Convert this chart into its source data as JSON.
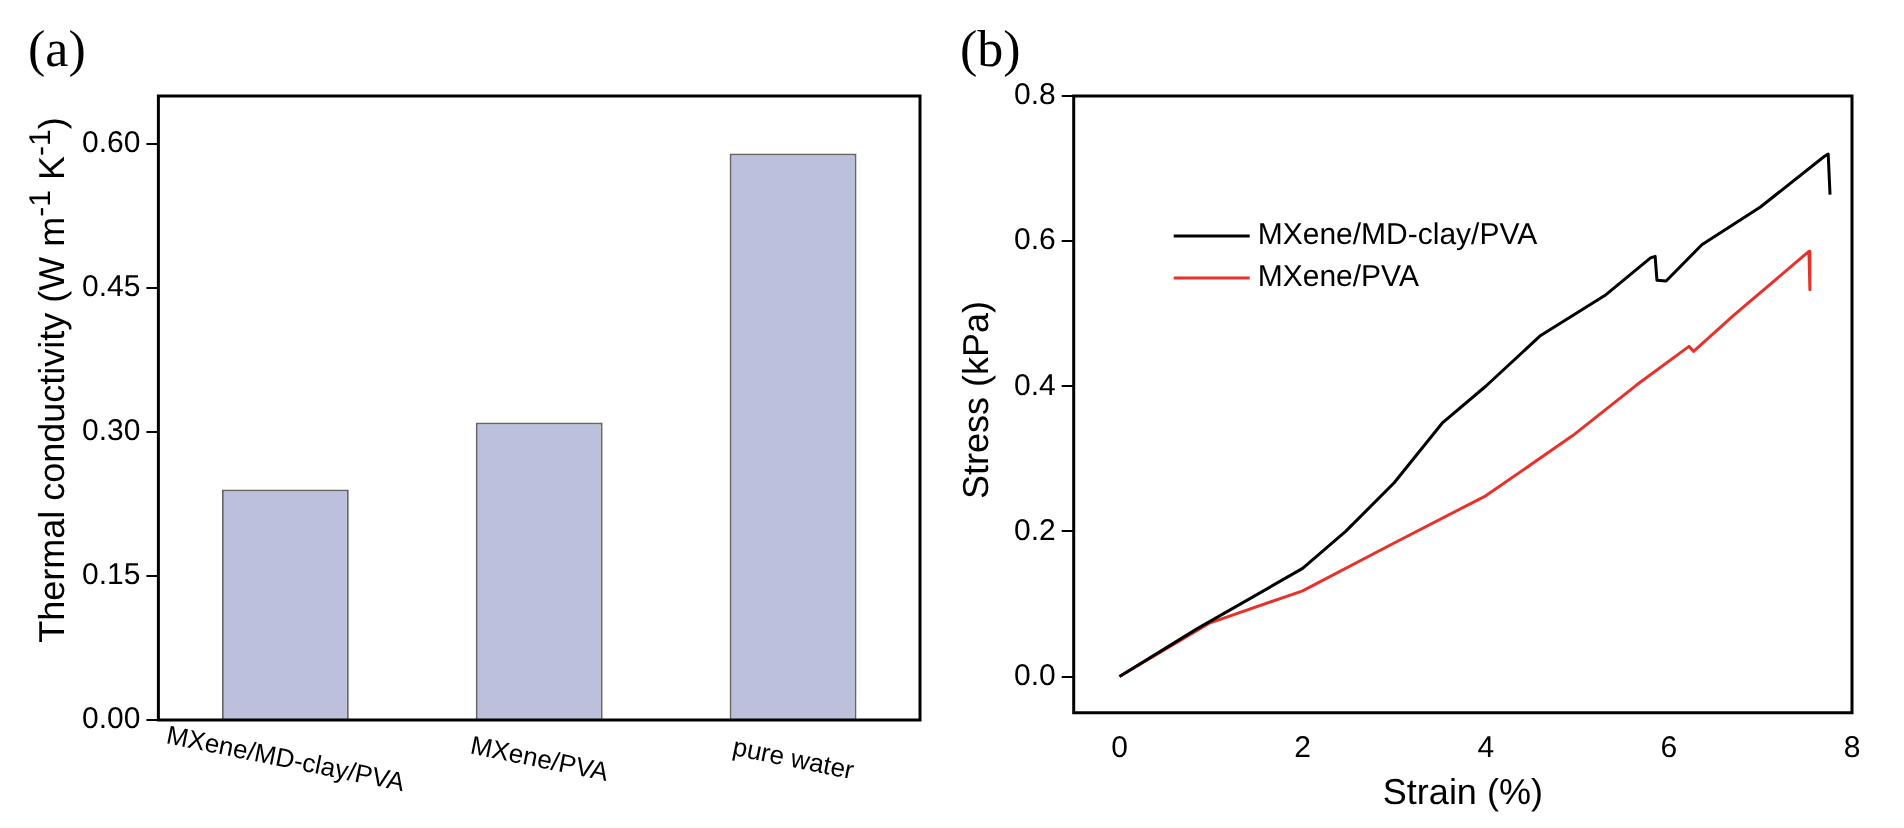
{
  "chart_data": [
    {
      "type": "bar",
      "title": "(a)",
      "ylabel": "Thermal conductivity (W m$^{-1}$ K$^{-1}$)",
      "categories": [
        "MXene/MD-clay/PVA",
        "MXene/PVA",
        "pure water"
      ],
      "values": [
        0.24,
        0.31,
        0.59
      ],
      "color": "#bcc0dc",
      "ylim": [
        0,
        0.65
      ],
      "yticks": [
        {
          "value": 0,
          "label": "0.00"
        },
        {
          "value": 0.15,
          "label": "0.15"
        },
        {
          "value": 0.3,
          "label": "0.30"
        },
        {
          "value": 0.45,
          "label": "0.45"
        },
        {
          "value": 0.6,
          "label": "0.60"
        }
      ],
      "legend": false
    },
    {
      "type": "line",
      "title": "(b)",
      "xlabel": "Strain (%)",
      "ylabel": "Stress (kPa)",
      "legend": "top left",
      "xlim": [
        -0.5,
        8
      ],
      "xticks": [
        0,
        2,
        4,
        6,
        8
      ],
      "ylim": [
        -0.05,
        0.8
      ],
      "yticks": [
        {
          "value": 0,
          "label": "0.0"
        },
        {
          "value": 0.2,
          "label": "0.2"
        },
        {
          "value": 0.4,
          "label": "0.4"
        },
        {
          "value": 0.6,
          "label": "0.6"
        },
        {
          "value": 0.8,
          "label": "0.8"
        }
      ],
      "series": [
        {
          "name": "MXene/MD-clay/PVA",
          "color": "#000000",
          "x": [
            0,
            0.85,
            2,
            2.47,
            3,
            3.53,
            4,
            4.6,
            5.3,
            5.8,
            5.85,
            5.87,
            5.97,
            6.36,
            7,
            7.7,
            7.74,
            7.76
          ],
          "values": [
            0,
            0.066,
            0.149,
            0.2,
            0.267,
            0.35,
            0.4,
            0.47,
            0.525,
            0.577,
            0.579,
            0.546,
            0.545,
            0.595,
            0.647,
            0.717,
            0.72,
            0.664
          ]
        },
        {
          "name": "MXene/PVA",
          "color": "#e8312a",
          "x": [
            0,
            0.99,
            2,
            3,
            4,
            4.95,
            5.65,
            6.22,
            6.27,
            6.71,
            7.53,
            7.54
          ],
          "values": [
            0,
            0.074,
            0.118,
            0.184,
            0.249,
            0.332,
            0.402,
            0.455,
            0.448,
            0.498,
            0.586,
            0.533
          ]
        }
      ]
    }
  ]
}
